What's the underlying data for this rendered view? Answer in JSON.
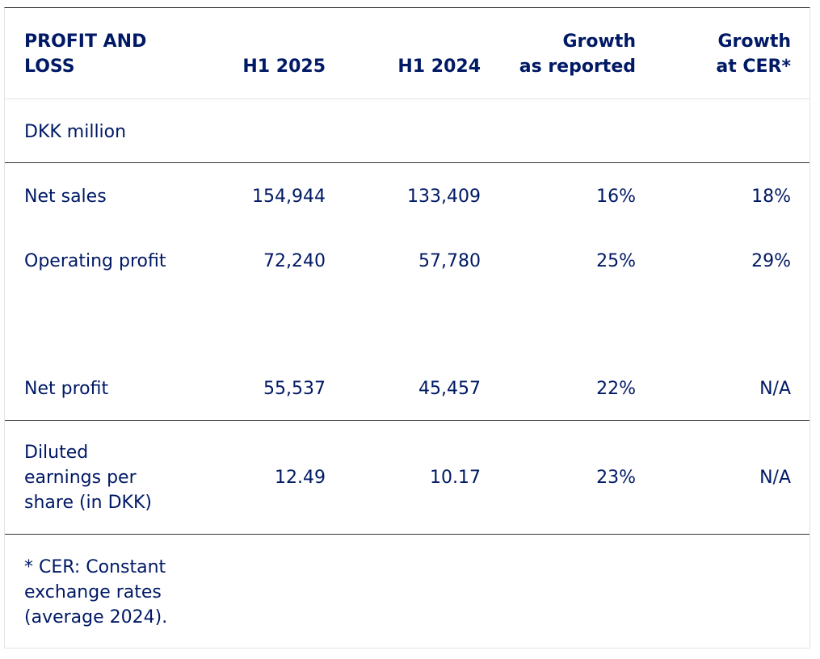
{
  "table": {
    "header": {
      "title_line1": "PROFIT AND",
      "title_line2": "LOSS",
      "col1": "H1 2025",
      "col2": "H1 2024",
      "col3_line1": "Growth",
      "col3_line2": "as reported",
      "col4_line1": "Growth",
      "col4_line2": "at CER*"
    },
    "unit_label": "DKK million",
    "rows": [
      {
        "label": "Net sales",
        "h1_2025": "154,944",
        "h1_2024": "133,409",
        "growth_reported": "16%",
        "growth_cer": "18%"
      },
      {
        "label": "Operating profit",
        "h1_2025": "72,240",
        "h1_2024": "57,780",
        "growth_reported": "25%",
        "growth_cer": "29%"
      },
      {
        "label": "Net profit",
        "h1_2025": "55,537",
        "h1_2024": "45,457",
        "growth_reported": "22%",
        "growth_cer": "N/A"
      }
    ],
    "eps_row": {
      "label_line1": "Diluted",
      "label_line2": "earnings per",
      "label_line3": "share (in DKK)",
      "h1_2025": "12.49",
      "h1_2024": "10.17",
      "growth_reported": "23%",
      "growth_cer": "N/A"
    },
    "footnote": {
      "line1": "* CER: Constant",
      "line2": "exchange rates",
      "line3": "(average 2024)."
    }
  }
}
